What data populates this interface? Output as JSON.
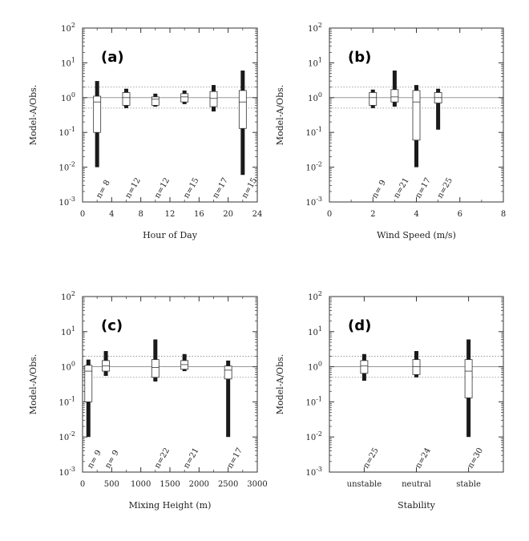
{
  "chart_data": [
    {
      "type": "boxplot",
      "panel_label": "(a)",
      "xlabel": "Hour of Day",
      "ylabel": "Model-A/Obs.",
      "yscale": "log",
      "ylim": [
        0.001,
        100
      ],
      "y_ticks": [
        {
          "base": "10",
          "exp": "-3"
        },
        {
          "base": "10",
          "exp": "-2"
        },
        {
          "base": "10",
          "exp": "-1"
        },
        {
          "base": "10",
          "exp": "0"
        },
        {
          "base": "10",
          "exp": "1"
        },
        {
          "base": "10",
          "exp": "2"
        }
      ],
      "xlim": [
        0,
        24
      ],
      "x_ticks": [
        "0",
        "4",
        "8",
        "12",
        "16",
        "20",
        "24"
      ],
      "reference_line": 1.0,
      "factor_of_two_lines": [
        0.5,
        2.0
      ],
      "boxes": [
        {
          "x": 2,
          "whisker_low": 0.01,
          "q1": 0.1,
          "median": 0.75,
          "q3": 1.1,
          "whisker_high": 3.0,
          "n_label": "n= 8"
        },
        {
          "x": 6,
          "whisker_low": 0.5,
          "q1": 0.6,
          "median": 1.0,
          "q3": 1.4,
          "whisker_high": 1.8,
          "n_label": "n=12"
        },
        {
          "x": 10,
          "whisker_low": 0.55,
          "q1": 0.6,
          "median": 0.9,
          "q3": 1.05,
          "whisker_high": 1.3,
          "n_label": "n=12"
        },
        {
          "x": 14,
          "whisker_low": 0.65,
          "q1": 0.75,
          "median": 1.05,
          "q3": 1.3,
          "whisker_high": 1.6,
          "n_label": "n=15"
        },
        {
          "x": 18,
          "whisker_low": 0.4,
          "q1": 0.55,
          "median": 0.95,
          "q3": 1.5,
          "whisker_high": 2.3,
          "n_label": "n=17"
        },
        {
          "x": 22,
          "whisker_low": 0.006,
          "q1": 0.13,
          "median": 0.75,
          "q3": 1.6,
          "whisker_high": 6.0,
          "n_label": "n=15"
        }
      ]
    },
    {
      "type": "boxplot",
      "panel_label": "(b)",
      "xlabel": "Wind Speed (m/s)",
      "ylabel": "Model-A/Obs.",
      "yscale": "log",
      "ylim": [
        0.001,
        100
      ],
      "y_ticks": [
        {
          "base": "10",
          "exp": "-3"
        },
        {
          "base": "10",
          "exp": "-2"
        },
        {
          "base": "10",
          "exp": "-1"
        },
        {
          "base": "10",
          "exp": "0"
        },
        {
          "base": "10",
          "exp": "1"
        },
        {
          "base": "10",
          "exp": "2"
        }
      ],
      "xlim": [
        0,
        8
      ],
      "x_ticks": [
        "0",
        "2",
        "4",
        "6",
        "8"
      ],
      "reference_line": 1.0,
      "factor_of_two_lines": [
        0.5,
        2.0
      ],
      "boxes": [
        {
          "x": 2,
          "whisker_low": 0.5,
          "q1": 0.6,
          "median": 1.0,
          "q3": 1.4,
          "whisker_high": 1.7,
          "n_label": "n= 9"
        },
        {
          "x": 3,
          "whisker_low": 0.55,
          "q1": 0.75,
          "median": 1.05,
          "q3": 1.7,
          "whisker_high": 6.0,
          "n_label": "n=21"
        },
        {
          "x": 4,
          "whisker_low": 0.01,
          "q1": 0.06,
          "median": 0.75,
          "q3": 1.6,
          "whisker_high": 2.3,
          "n_label": "n=17"
        },
        {
          "x": 5,
          "whisker_low": 0.12,
          "q1": 0.7,
          "median": 1.0,
          "q3": 1.4,
          "whisker_high": 1.8,
          "n_label": "n=25"
        }
      ]
    },
    {
      "type": "boxplot",
      "panel_label": "(c)",
      "xlabel": "Mixing Height (m)",
      "ylabel": "Model-A/Obs.",
      "yscale": "log",
      "ylim": [
        0.001,
        100
      ],
      "y_ticks": [
        {
          "base": "10",
          "exp": "-3"
        },
        {
          "base": "10",
          "exp": "-2"
        },
        {
          "base": "10",
          "exp": "-1"
        },
        {
          "base": "10",
          "exp": "0"
        },
        {
          "base": "10",
          "exp": "1"
        },
        {
          "base": "10",
          "exp": "2"
        }
      ],
      "xlim": [
        0,
        3000
      ],
      "x_ticks": [
        "0",
        "500",
        "1000",
        "1500",
        "2000",
        "2500",
        "3000"
      ],
      "reference_line": 1.0,
      "factor_of_two_lines": [
        0.5,
        2.0
      ],
      "boxes": [
        {
          "x": 100,
          "whisker_low": 0.01,
          "q1": 0.1,
          "median": 0.75,
          "q3": 1.1,
          "whisker_high": 1.6,
          "n_label": "n= 9"
        },
        {
          "x": 400,
          "whisker_low": 0.55,
          "q1": 0.75,
          "median": 1.05,
          "q3": 1.5,
          "whisker_high": 2.8,
          "n_label": "n= 9"
        },
        {
          "x": 1250,
          "whisker_low": 0.38,
          "q1": 0.5,
          "median": 0.95,
          "q3": 1.6,
          "whisker_high": 6.0,
          "n_label": "n=22"
        },
        {
          "x": 1750,
          "whisker_low": 0.75,
          "q1": 0.85,
          "median": 1.15,
          "q3": 1.5,
          "whisker_high": 2.3,
          "n_label": "n=21"
        },
        {
          "x": 2500,
          "whisker_low": 0.01,
          "q1": 0.45,
          "median": 0.8,
          "q3": 1.05,
          "whisker_high": 1.5,
          "n_label": "n=17"
        }
      ]
    },
    {
      "type": "boxplot",
      "panel_label": "(d)",
      "xlabel": "Stability",
      "ylabel": "Model-A/Obs.",
      "yscale": "log",
      "ylim": [
        0.001,
        100
      ],
      "y_ticks": [
        {
          "base": "10",
          "exp": "-3"
        },
        {
          "base": "10",
          "exp": "-2"
        },
        {
          "base": "10",
          "exp": "-1"
        },
        {
          "base": "10",
          "exp": "0"
        },
        {
          "base": "10",
          "exp": "1"
        },
        {
          "base": "10",
          "exp": "2"
        }
      ],
      "categories": [
        "unstable",
        "neutral",
        "stable"
      ],
      "reference_line": 1.0,
      "factor_of_two_lines": [
        0.5,
        2.0
      ],
      "boxes": [
        {
          "category": "unstable",
          "whisker_low": 0.4,
          "q1": 0.65,
          "median": 1.05,
          "q3": 1.5,
          "whisker_high": 2.3,
          "n_label": "n=25"
        },
        {
          "category": "neutral",
          "whisker_low": 0.5,
          "q1": 0.6,
          "median": 1.0,
          "q3": 1.6,
          "whisker_high": 2.8,
          "n_label": "n=24"
        },
        {
          "category": "stable",
          "whisker_low": 0.01,
          "q1": 0.13,
          "median": 0.75,
          "q3": 1.6,
          "whisker_high": 6.0,
          "n_label": "n=30"
        }
      ]
    }
  ]
}
